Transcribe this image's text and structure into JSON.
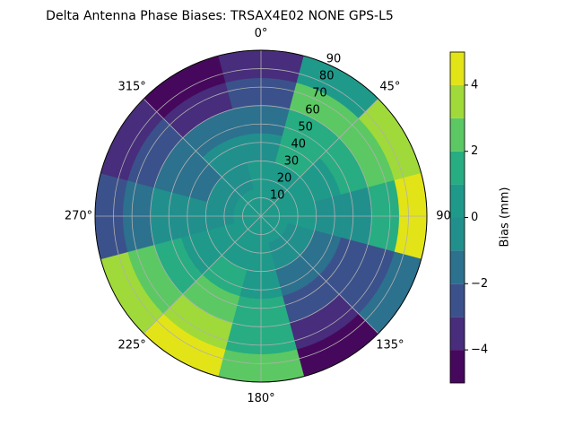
{
  "chart_data": {
    "type": "polar-contour",
    "title": "Delta Antenna Phase Biases: TRSAX4E02       NONE GPS-L5",
    "colorbar_label": "Bias (mm)",
    "theta": [
      0,
      30,
      60,
      90,
      120,
      150,
      180,
      210,
      240,
      270,
      300,
      330
    ],
    "r": [
      7.5,
      22.5,
      37.5,
      52.5,
      67.5,
      82.5
    ],
    "z": [
      [
        0.5,
        0.5,
        0.5,
        0.5,
        0.5,
        0.5,
        0.5,
        0.5,
        0.5,
        0.5,
        0.5,
        0.5
      ],
      [
        0.5,
        1,
        1,
        0.5,
        0,
        0,
        1,
        1,
        0.5,
        0,
        0,
        0
      ],
      [
        0,
        1.5,
        1,
        0,
        -1,
        -1,
        1,
        1.5,
        1,
        0,
        -1,
        -0.5
      ],
      [
        -1,
        2,
        1.5,
        0,
        -2,
        -2,
        1.5,
        2.5,
        2,
        0,
        -1.5,
        -1.5
      ],
      [
        -2,
        2.5,
        3,
        2,
        -2,
        -3,
        2,
        3.5,
        3,
        -1,
        -2.5,
        -3
      ],
      [
        -3,
        1,
        3.5,
        4.5,
        -1,
        -4,
        2.5,
        4.5,
        3.5,
        -2,
        -3.5,
        -4.5
      ]
    ],
    "levels": [
      -5,
      -4,
      -3,
      -2,
      -1,
      0,
      1,
      2,
      3,
      4,
      5
    ],
    "colors": [
      "#46085c",
      "#472d7b",
      "#3b518b",
      "#2c718e",
      "#21908d",
      "#1f9a8a",
      "#27ad81",
      "#5cc863",
      "#9fda3a",
      "#e2e418"
    ],
    "rlim": [
      0,
      90
    ],
    "rticks": [
      10,
      20,
      30,
      40,
      50,
      60,
      70,
      80,
      90
    ],
    "thetaticks": [
      {
        "value": 0,
        "label": "0°"
      },
      {
        "value": 45,
        "label": "45°"
      },
      90,
      {
        "value": 135,
        "label": "135°"
      },
      {
        "value": 180,
        "label": "180°"
      },
      {
        "value": 225,
        "label": "225°"
      },
      {
        "value": 270,
        "label": "270°"
      },
      {
        "value": 315,
        "label": "315°"
      }
    ],
    "cbar_ticks": [
      {
        "value": -4,
        "label": "−4"
      },
      {
        "value": -2,
        "label": "−2"
      },
      0,
      2,
      4
    ],
    "grid": true
  }
}
